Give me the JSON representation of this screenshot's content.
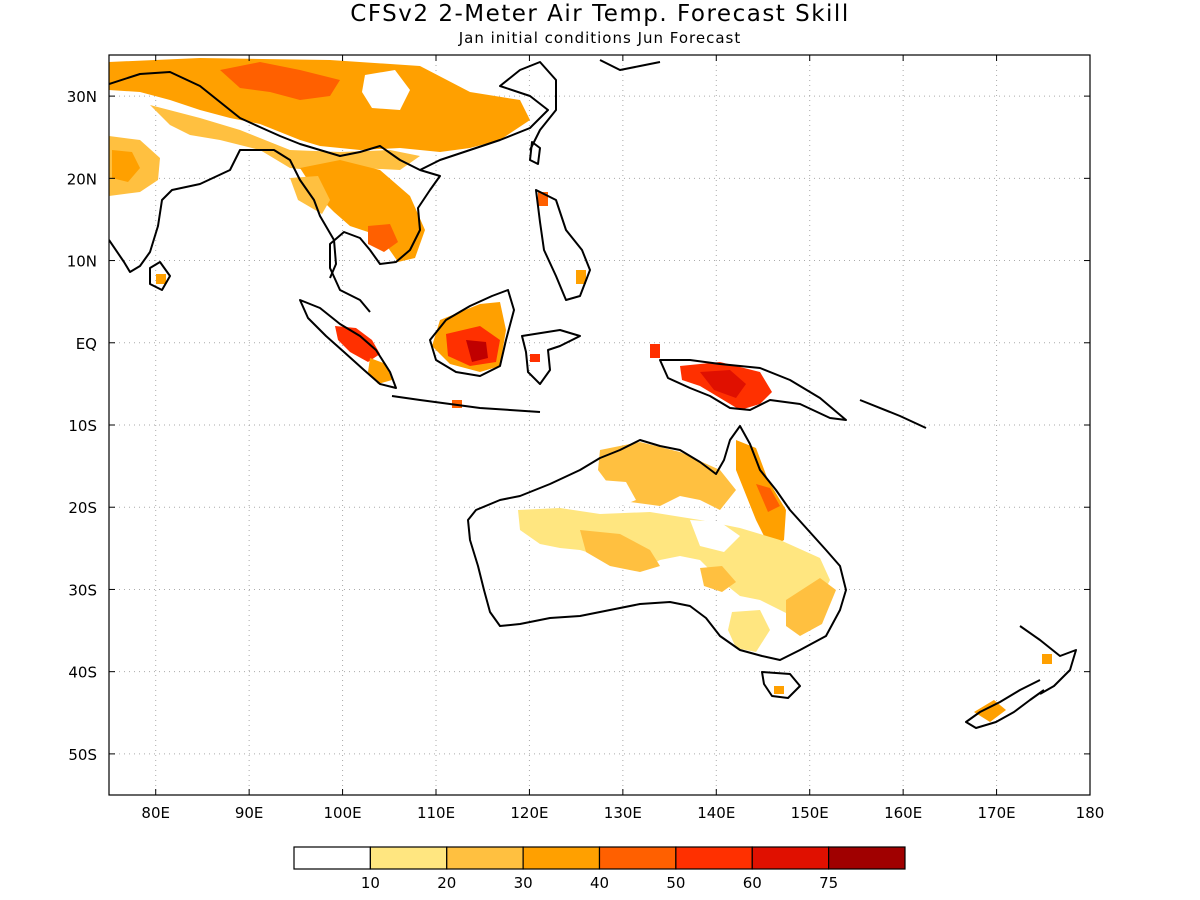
{
  "figure": {
    "title": "CFSv2 2-Meter Air Temp. Forecast Skill",
    "subtitle": "Jan initial conditions  Jun Forecast"
  },
  "map": {
    "region": "Indo-Pacific / Australia",
    "lon_range": [
      75,
      180
    ],
    "lat_range": [
      -55,
      35
    ],
    "lon_ticks": [
      "80E",
      "90E",
      "100E",
      "110E",
      "120E",
      "130E",
      "140E",
      "150E",
      "160E",
      "170E",
      "180"
    ],
    "lat_ticks": [
      "30N",
      "20N",
      "10N",
      "EQ",
      "10S",
      "20S",
      "30S",
      "40S",
      "50S"
    ],
    "gridlines": "dotted"
  },
  "colorbar": {
    "labels": [
      "10",
      "20",
      "30",
      "40",
      "50",
      "60",
      "75"
    ],
    "colors": [
      "#ffffff",
      "#ffe680",
      "#ffc040",
      "#ffa000",
      "#ff6000",
      "#ff3000",
      "#e01000",
      "#a00000"
    ]
  }
}
